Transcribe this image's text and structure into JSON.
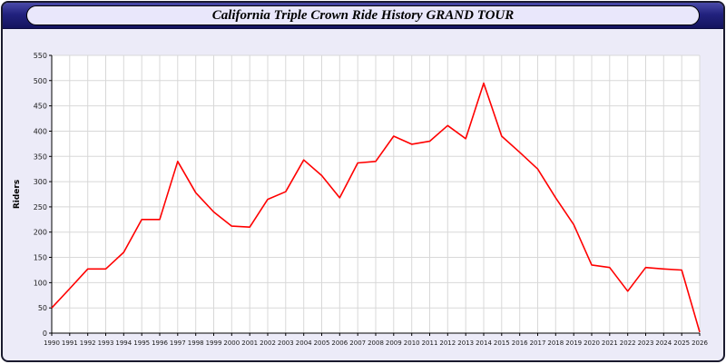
{
  "title": "California Triple Crown Ride History GRAND TOUR",
  "colors": {
    "page_background": "#ecebf8",
    "header_navy": "#22227e",
    "title_pill_bg": "#e9e7fb",
    "line_red": "#ff0000",
    "plot_bg": "#ffffff",
    "grid_gray": "#d8d8d8"
  },
  "chart_data": {
    "type": "line",
    "title": "California Triple Crown Ride History GRAND TOUR",
    "xlabel": "",
    "ylabel": "Riders",
    "ylim": [
      0,
      550
    ],
    "ytick_step": 50,
    "grid": true,
    "legend": "none",
    "plot_bg": "#ffffff",
    "grid_color": "#d8d8d8",
    "categories": [
      1990,
      1991,
      1992,
      1993,
      1994,
      1995,
      1996,
      1997,
      1998,
      1999,
      2000,
      2001,
      2002,
      2003,
      2004,
      2005,
      2006,
      2007,
      2008,
      2009,
      2010,
      2011,
      2012,
      2013,
      2014,
      2015,
      2016,
      2017,
      2018,
      2019,
      2020,
      2021,
      2022,
      2023,
      2024,
      2025,
      2026
    ],
    "series": [
      {
        "name": "Riders",
        "color": "#ff0000",
        "values": [
          50,
          88,
          127,
          127,
          160,
          225,
          225,
          340,
          278,
          240,
          212,
          210,
          265,
          280,
          343,
          312,
          268,
          337,
          340,
          390,
          374,
          380,
          411,
          385,
          495,
          390,
          358,
          325,
          268,
          215,
          135,
          130,
          83,
          130,
          127,
          125,
          2
        ]
      }
    ]
  }
}
